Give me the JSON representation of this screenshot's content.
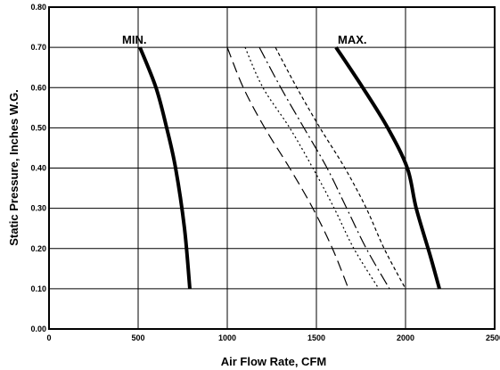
{
  "chart_data": {
    "type": "line",
    "title": "",
    "xlabel": "Air Flow Rate, CFM",
    "ylabel": "Static Pressure, Inches W.G.",
    "xlim": [
      0,
      2500
    ],
    "ylim": [
      0.0,
      0.8
    ],
    "x_ticks": [
      0,
      500,
      1000,
      1500,
      2000,
      2500
    ],
    "x_tick_labels": [
      "0",
      "500",
      "1000",
      "1500",
      "2000",
      "2500"
    ],
    "y_ticks": [
      0.0,
      0.1,
      0.2,
      0.3,
      0.4,
      0.5,
      0.6,
      0.7,
      0.8
    ],
    "y_tick_labels": [
      "0.00",
      "0.10",
      "0.20",
      "0.30",
      "0.40",
      "0.50",
      "0.60",
      "0.70",
      "0.80"
    ],
    "grid": true,
    "annotations": [
      {
        "text": "MIN.",
        "x": 410,
        "y": 0.72
      },
      {
        "text": "MAX.",
        "x": 1620,
        "y": 0.72
      }
    ],
    "series": [
      {
        "style": "thick-solid",
        "x": [
          510,
          600,
          660,
          710,
          760,
          790
        ],
        "y": [
          0.7,
          0.6,
          0.5,
          0.4,
          0.25,
          0.1
        ]
      },
      {
        "style": "long-dash",
        "x": [
          1000,
          1090,
          1210,
          1350,
          1480,
          1590,
          1680
        ],
        "y": [
          0.7,
          0.6,
          0.5,
          0.4,
          0.3,
          0.2,
          0.1
        ]
      },
      {
        "style": "dotted",
        "x": [
          1100,
          1200,
          1350,
          1480,
          1600,
          1710,
          1850
        ],
        "y": [
          0.7,
          0.6,
          0.5,
          0.4,
          0.3,
          0.2,
          0.1
        ]
      },
      {
        "style": "dash-dot",
        "x": [
          1180,
          1300,
          1430,
          1560,
          1670,
          1780,
          1910
        ],
        "y": [
          0.7,
          0.6,
          0.5,
          0.4,
          0.3,
          0.2,
          0.1
        ]
      },
      {
        "style": "short-dash",
        "x": [
          1270,
          1390,
          1520,
          1660,
          1780,
          1880,
          2000
        ],
        "y": [
          0.7,
          0.6,
          0.5,
          0.4,
          0.3,
          0.2,
          0.1
        ]
      },
      {
        "style": "thick-solid",
        "x": [
          1610,
          1760,
          1900,
          2010,
          2060,
          2140,
          2190
        ],
        "y": [
          0.7,
          0.6,
          0.5,
          0.4,
          0.3,
          0.18,
          0.1
        ]
      }
    ]
  }
}
